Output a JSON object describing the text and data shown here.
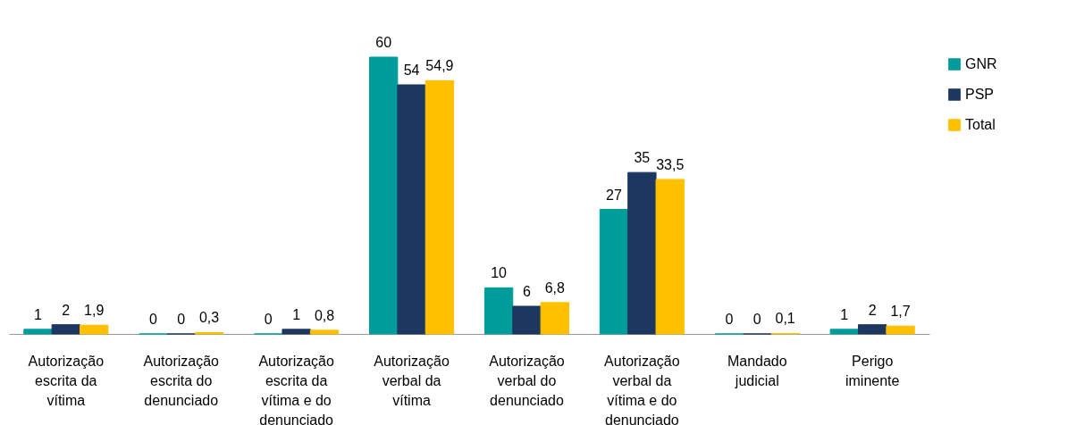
{
  "chart_data": {
    "type": "bar",
    "categories": [
      "Autorização escrita da vítima",
      "Autorização escrita do denunciado",
      "Autorização escrita da vítima e do denunciado",
      "Autorização verbal da vítima",
      "Autorização verbal do denunciado",
      "Autorização verbal da vítima e do denunciado",
      "Mandado judicial",
      "Perigo iminente"
    ],
    "series": [
      {
        "name": "GNR",
        "color": "#009b9b",
        "values": [
          1,
          0,
          0,
          60,
          10,
          27,
          0,
          1
        ],
        "value_labels": [
          "1",
          "0",
          "0",
          "60",
          "10",
          "27",
          "0",
          "1"
        ]
      },
      {
        "name": "PSP",
        "color": "#1d3760",
        "values": [
          2,
          0,
          1,
          54,
          6,
          35,
          0,
          2
        ],
        "value_labels": [
          "2",
          "0",
          "1",
          "54",
          "6",
          "35",
          "0",
          "2"
        ]
      },
      {
        "name": "Total",
        "color": "#ffc000",
        "values": [
          1.9,
          0.3,
          0.8,
          54.9,
          6.8,
          33.5,
          0.1,
          1.7
        ],
        "value_labels": [
          "1,9",
          "0,3",
          "0,8",
          "54,9",
          "6,8",
          "33,5",
          "0,1",
          "1,7"
        ]
      }
    ],
    "legend": "right",
    "grid": false
  }
}
